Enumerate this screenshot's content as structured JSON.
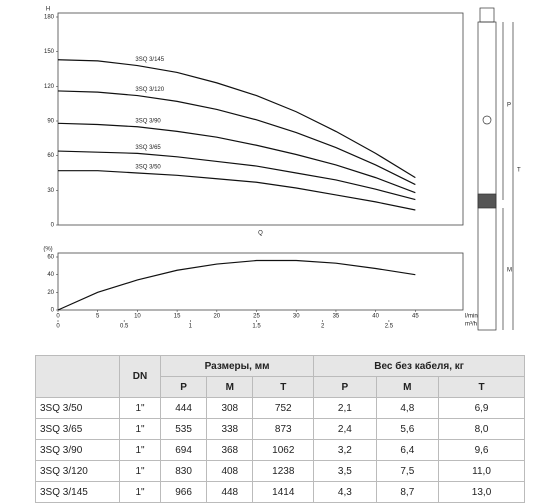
{
  "chart_data": [
    {
      "type": "line",
      "y_label": "H",
      "x_label": "Q",
      "xlim": [
        0,
        51
      ],
      "ylim": [
        0,
        180
      ],
      "yticks": [
        0,
        30,
        60,
        90,
        120,
        150,
        180
      ],
      "grid": false,
      "x": [
        0,
        5,
        10,
        15,
        20,
        25,
        30,
        35,
        40,
        45
      ],
      "series": [
        {
          "name": "3SQ 3/145",
          "color": "#111111",
          "values": [
            143,
            142,
            138,
            132,
            123,
            112,
            98,
            81,
            62,
            41
          ]
        },
        {
          "name": "3SQ 3/120",
          "color": "#111111",
          "values": [
            116,
            115,
            112,
            107,
            100,
            91,
            80,
            67,
            52,
            35
          ]
        },
        {
          "name": "3SQ 3/90",
          "color": "#111111",
          "values": [
            88,
            87,
            85,
            81,
            76,
            69,
            61,
            52,
            41,
            28
          ]
        },
        {
          "name": "3SQ 3/65",
          "color": "#111111",
          "values": [
            64,
            63,
            62,
            59,
            55,
            51,
            45,
            39,
            31,
            22
          ]
        },
        {
          "name": "3SQ 3/50",
          "color": "#111111",
          "values": [
            47,
            47,
            45,
            43,
            40,
            37,
            32,
            26,
            20,
            13
          ]
        }
      ]
    },
    {
      "type": "line",
      "y_label": "(%)",
      "xlim": [
        0,
        51
      ],
      "xticks": [
        0,
        5,
        10,
        15,
        20,
        25,
        30,
        35,
        40,
        45
      ],
      "x_unit": "l/min",
      "x2lim": [
        0,
        3.06
      ],
      "x2ticks": [
        0,
        0.5,
        1,
        1.5,
        2,
        2.5
      ],
      "x2_unit": "m³/h",
      "ylim": [
        0,
        60
      ],
      "yticks": [
        0,
        20,
        40,
        60
      ],
      "grid": false,
      "x": [
        0,
        5,
        10,
        15,
        20,
        25,
        30,
        35,
        40,
        45
      ],
      "series": [
        {
          "color": "#111111",
          "values": [
            0,
            20,
            34,
            45,
            52,
            56,
            56,
            53,
            47,
            40
          ]
        }
      ]
    }
  ],
  "drawing": {
    "labels": [
      "P",
      "T",
      "M"
    ]
  },
  "table": {
    "header": [
      "DN",
      "Размеры, мм",
      "Вес без кабеля, кг"
    ],
    "subheader": [
      "P",
      "M",
      "T",
      "P",
      "M",
      "T"
    ],
    "rows": [
      [
        "3SQ 3/50",
        "1\"",
        "444",
        "308",
        "752",
        "2,1",
        "4,8",
        "6,9"
      ],
      [
        "3SQ 3/65",
        "1\"",
        "535",
        "338",
        "873",
        "2,4",
        "5,6",
        "8,0"
      ],
      [
        "3SQ 3/90",
        "1\"",
        "694",
        "368",
        "1062",
        "3,2",
        "6,4",
        "9,6"
      ],
      [
        "3SQ 3/120",
        "1\"",
        "830",
        "408",
        "1238",
        "3,5",
        "7,5",
        "11,0"
      ],
      [
        "3SQ 3/145",
        "1\"",
        "966",
        "448",
        "1414",
        "4,3",
        "8,7",
        "13,0"
      ]
    ]
  }
}
